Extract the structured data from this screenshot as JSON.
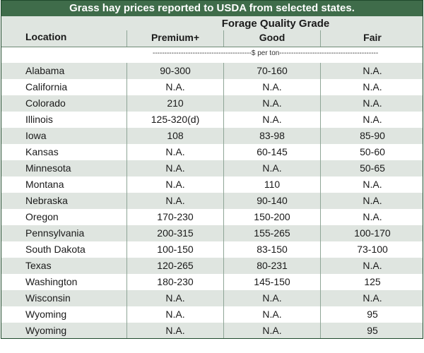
{
  "title": "Grass hay prices reported to USDA from selected states.",
  "header": {
    "location": "Location",
    "group": "Forage Quality Grade",
    "columns": [
      "Premium+",
      "Good",
      "Fair"
    ],
    "units": "------------------------------------------$ per ton------------------------------------------"
  },
  "rows": [
    {
      "location": "Alabama",
      "premium": "90-300",
      "good": "70-160",
      "fair": "N.A."
    },
    {
      "location": "California",
      "premium": "N.A.",
      "good": "N.A.",
      "fair": "N.A."
    },
    {
      "location": "Colorado",
      "premium": "210",
      "good": "N.A.",
      "fair": "N.A."
    },
    {
      "location": "Illinois",
      "premium": "125-320(d)",
      "good": "N.A.",
      "fair": "N.A."
    },
    {
      "location": "Iowa",
      "premium": "108",
      "good": "83-98",
      "fair": "85-90"
    },
    {
      "location": "Kansas",
      "premium": "N.A.",
      "good": "60-145",
      "fair": "50-60"
    },
    {
      "location": "Minnesota",
      "premium": "N.A.",
      "good": "N.A.",
      "fair": "50-65"
    },
    {
      "location": "Montana",
      "premium": "N.A.",
      "good": "110",
      "fair": "N.A."
    },
    {
      "location": "Nebraska",
      "premium": "N.A.",
      "good": "90-140",
      "fair": "N.A."
    },
    {
      "location": "Oregon",
      "premium": "170-230",
      "good": "150-200",
      "fair": "N.A."
    },
    {
      "location": "Pennsylvania",
      "premium": "200-315",
      "good": "155-265",
      "fair": "100-170"
    },
    {
      "location": "South Dakota",
      "premium": "100-150",
      "good": "83-150",
      "fair": "73-100"
    },
    {
      "location": "Texas",
      "premium": "120-265",
      "good": "80-231",
      "fair": "N.A."
    },
    {
      "location": "Washington",
      "premium": "180-230",
      "good": "145-150",
      "fair": "125"
    },
    {
      "location": "Wisconsin",
      "premium": "N.A.",
      "good": "N.A.",
      "fair": "N.A."
    },
    {
      "location": "Wyoming",
      "premium": "N.A.",
      "good": "N.A.",
      "fair": "95"
    },
    {
      "location": "Wyoming",
      "premium": "N.A.",
      "good": "N.A.",
      "fair": "95"
    }
  ]
}
